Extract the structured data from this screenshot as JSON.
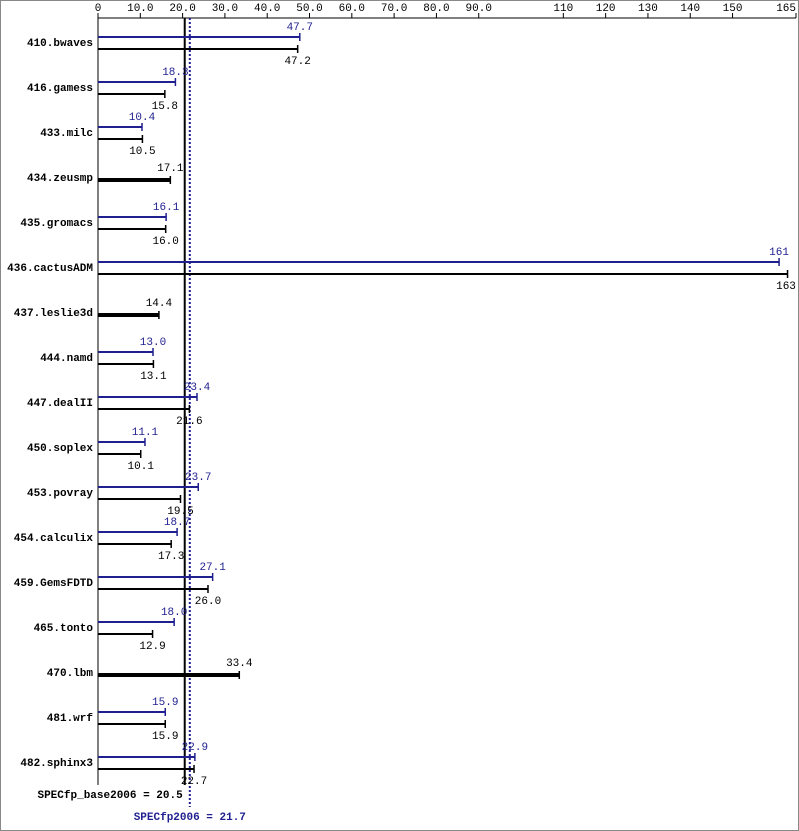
{
  "chart_data": {
    "type": "bar",
    "orientation": "horizontal",
    "categories": [
      "410.bwaves",
      "416.gamess",
      "433.milc",
      "434.zeusmp",
      "435.gromacs",
      "436.cactusADM",
      "437.leslie3d",
      "444.namd",
      "447.dealII",
      "450.soplex",
      "453.povray",
      "454.calculix",
      "459.GemsFDTD",
      "465.tonto",
      "470.lbm",
      "481.wrf",
      "482.sphinx3"
    ],
    "series": [
      {
        "color": "#1f1f8f",
        "values": [
          47.7,
          18.3,
          10.4,
          null,
          16.1,
          161,
          null,
          13.0,
          23.4,
          11.1,
          23.7,
          18.7,
          27.1,
          18.0,
          null,
          15.9,
          22.9
        ],
        "value_labels": [
          "47.7",
          "18.3",
          "10.4",
          null,
          "16.1",
          "161",
          null,
          "13.0",
          "23.4",
          "11.1",
          "23.7",
          "18.7",
          "27.1",
          "18.0",
          null,
          "15.9",
          "22.9"
        ]
      },
      {
        "color": "#000000",
        "values": [
          47.2,
          15.8,
          10.5,
          17.1,
          16.0,
          163,
          14.4,
          13.1,
          21.6,
          10.1,
          19.5,
          17.3,
          26.0,
          12.9,
          33.4,
          15.9,
          22.7
        ],
        "value_labels": [
          "47.2",
          "15.8",
          "10.5",
          "17.1",
          "16.0",
          "163",
          "14.4",
          "13.1",
          "21.6",
          "10.1",
          "19.5",
          "17.3",
          "26.0",
          "12.9",
          "33.4",
          "15.9",
          "22.7"
        ]
      }
    ],
    "xlim": [
      0,
      165
    ],
    "xticks": [
      0,
      {
        "value": 10,
        "label": "10.0"
      },
      {
        "value": 20,
        "label": "20.0"
      },
      {
        "value": 30,
        "label": "30.0"
      },
      {
        "value": 40,
        "label": "40.0"
      },
      {
        "value": 50,
        "label": "50.0"
      },
      {
        "value": 60,
        "label": "60.0"
      },
      {
        "value": 70,
        "label": "70.0"
      },
      {
        "value": 80,
        "label": "80.0"
      },
      {
        "value": 90,
        "label": "90.0"
      },
      110,
      120,
      130,
      140,
      150,
      165
    ],
    "reference_lines": [
      {
        "label": "SPECfp_base2006 = 20.5",
        "value": 20.5,
        "color": "#000000",
        "style": "solid"
      },
      {
        "label": "SPECfp2006 = 21.7",
        "value": 21.7,
        "color": "#1f1f8f",
        "style": "dotted"
      }
    ]
  }
}
